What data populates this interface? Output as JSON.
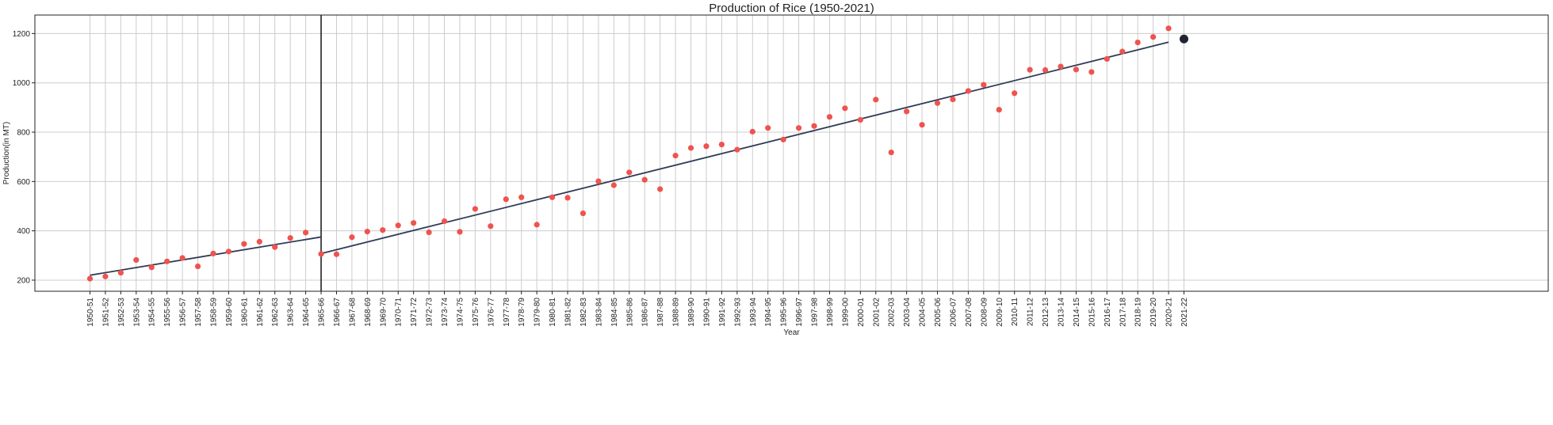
{
  "chart_data": {
    "type": "scatter",
    "title": "Production of Rice (1950-2021)",
    "xlabel": "Year",
    "ylabel": "Production(in MT)",
    "categories": [
      "1950-51",
      "1951-52",
      "1952-53",
      "1953-54",
      "1954-55",
      "1955-56",
      "1956-57",
      "1957-58",
      "1958-59",
      "1959-60",
      "1960-61",
      "1961-62",
      "1962-63",
      "1963-64",
      "1964-65",
      "1965-66",
      "1966-67",
      "1967-68",
      "1968-69",
      "1969-70",
      "1970-71",
      "1971-72",
      "1972-73",
      "1973-74",
      "1974-75",
      "1975-76",
      "1976-77",
      "1977-78",
      "1978-79",
      "1979-80",
      "1980-81",
      "1981-82",
      "1982-83",
      "1983-84",
      "1984-85",
      "1985-86",
      "1986-87",
      "1987-88",
      "1988-89",
      "1989-90",
      "1990-91",
      "1991-92",
      "1992-93",
      "1993-94",
      "1994-95",
      "1995-96",
      "1996-97",
      "1997-98",
      "1998-99",
      "1999-00",
      "2000-01",
      "2001-02",
      "2002-03",
      "2003-04",
      "2004-05",
      "2005-06",
      "2006-07",
      "2007-08",
      "2008-09",
      "2009-10",
      "2010-11",
      "2011-12",
      "2012-13",
      "2013-14",
      "2014-15",
      "2015-16",
      "2016-17",
      "2017-18",
      "2018-19",
      "2019-20",
      "2020-21",
      "2021-22"
    ],
    "series": [
      {
        "values": [
          206,
          215,
          230,
          282,
          252,
          276,
          290,
          256,
          308,
          316,
          347,
          356,
          334,
          371,
          393,
          306,
          305,
          374,
          397,
          403,
          422,
          432,
          394,
          439,
          396,
          489,
          419,
          528,
          536,
          425,
          536,
          534,
          471,
          601,
          585,
          637,
          607,
          569,
          705,
          736,
          743,
          750,
          729,
          802,
          817,
          770,
          817,
          825,
          862,
          897,
          850,
          932,
          718,
          884,
          830,
          918,
          933,
          967,
          992,
          891,
          958,
          1053,
          1052,
          1066,
          1054,
          1044,
          1097,
          1127,
          1164,
          1186,
          1221
        ]
      }
    ],
    "forecast": {
      "category": "2021-22",
      "value": 1178
    },
    "trend_lines": [
      {
        "from": "1950-51",
        "to": "1965-66",
        "y_start": 220,
        "y_end": 375
      },
      {
        "from": "1965-66",
        "to": "2020-21",
        "y_start": 308,
        "y_end": 1165
      }
    ],
    "vertical_marker": "1965-66",
    "yticks": [
      200,
      400,
      600,
      800,
      1000,
      1200
    ],
    "ylim": [
      155,
      1275
    ],
    "grid": true,
    "colors": {
      "points": "#ef5350",
      "trend": "#2f3b55",
      "forecast": "#1f2430",
      "grid": "#cccccc",
      "marker_line": "#222222"
    }
  }
}
